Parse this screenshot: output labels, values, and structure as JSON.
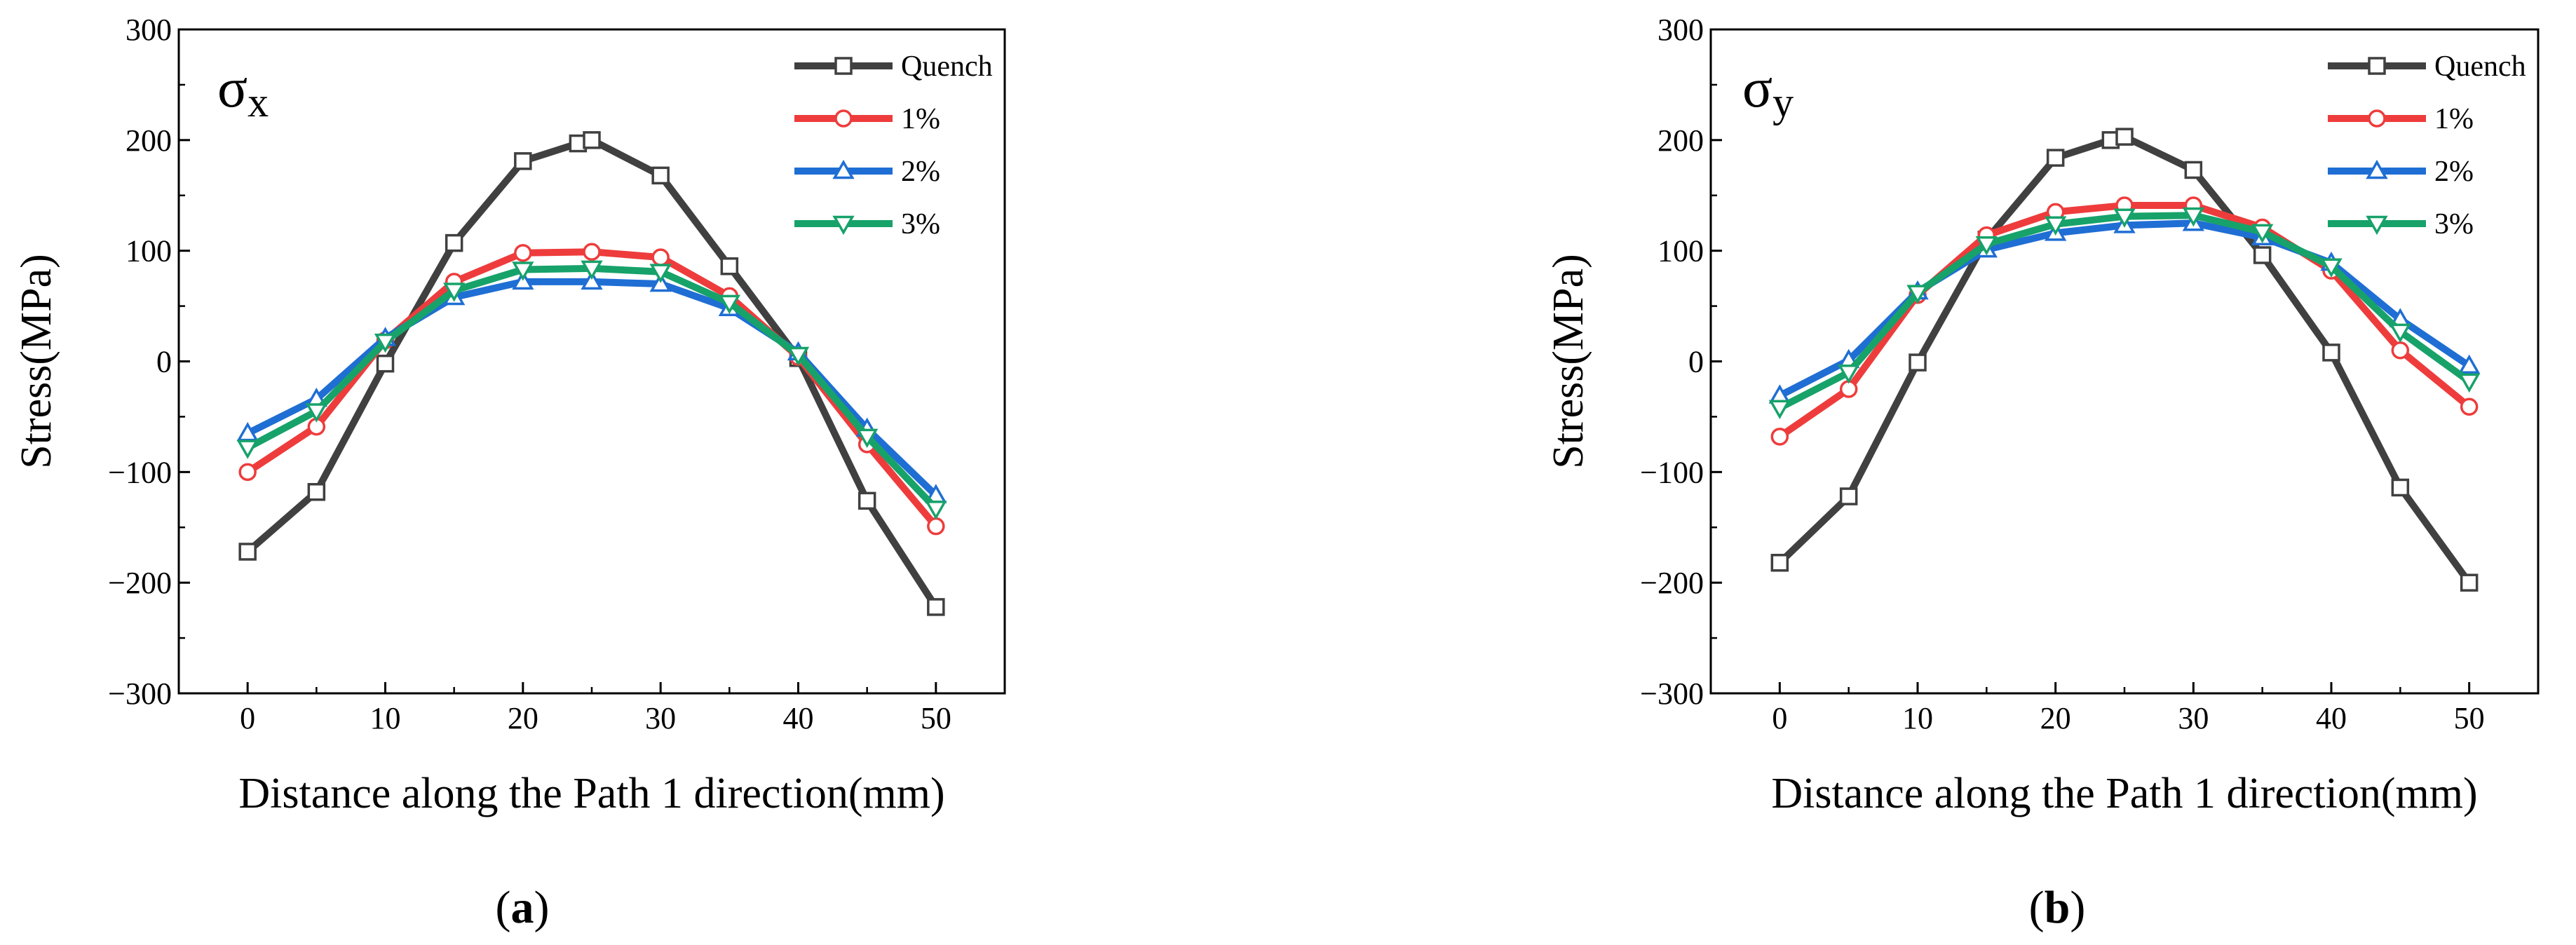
{
  "chart_data": [
    {
      "type": "line",
      "panel_label": "a",
      "annotation": {
        "symbol": "σ",
        "subscript": "x"
      },
      "xlabel": "Distance along the Path 1 direction(mm)",
      "ylabel": "Stress(MPa)",
      "xlim": [
        -5,
        55
      ],
      "ylim": [
        -300,
        300
      ],
      "xticks": [
        0,
        10,
        20,
        30,
        40,
        50
      ],
      "yticks": [
        -300,
        -200,
        -100,
        0,
        100,
        200,
        300
      ],
      "xtick_labels": [
        "0",
        "10",
        "20",
        "30",
        "40",
        "50"
      ],
      "ytick_labels": [
        "−300",
        "−200",
        "−100",
        "0",
        "100",
        "200",
        "300"
      ],
      "legend_position": "top-right",
      "series": [
        {
          "name": "Quench",
          "color": "#404040",
          "marker": "square",
          "x": [
            0,
            5,
            10,
            15,
            20,
            24,
            25,
            30,
            35,
            40,
            45,
            50
          ],
          "y": [
            -172,
            -118,
            -2,
            107,
            181,
            197,
            200,
            168,
            86,
            3,
            -126,
            -222
          ]
        },
        {
          "name": "1%",
          "color": "#ee3c3c",
          "marker": "circle",
          "x": [
            0,
            5,
            10,
            15,
            20,
            25,
            30,
            35,
            40,
            45,
            50
          ],
          "y": [
            -100,
            -59,
            19,
            72,
            98,
            99,
            94,
            59,
            4,
            -75,
            -149
          ]
        },
        {
          "name": "2%",
          "color": "#1f6ed4",
          "marker": "triangle-up",
          "x": [
            0,
            5,
            10,
            15,
            20,
            25,
            30,
            35,
            40,
            45,
            50
          ],
          "y": [
            -65,
            -34,
            21,
            58,
            72,
            72,
            70,
            48,
            8,
            -61,
            -121
          ]
        },
        {
          "name": "3%",
          "color": "#17a26a",
          "marker": "triangle-down",
          "x": [
            0,
            5,
            10,
            15,
            20,
            25,
            30,
            35,
            40,
            45,
            50
          ],
          "y": [
            -78,
            -45,
            18,
            64,
            83,
            84,
            81,
            53,
            6,
            -68,
            -133
          ]
        }
      ]
    },
    {
      "type": "line",
      "panel_label": "b",
      "annotation": {
        "symbol": "σ",
        "subscript": "y"
      },
      "xlabel": "Distance along the Path 1 direction(mm)",
      "ylabel": "Stress(MPa)",
      "xlim": [
        -5,
        55
      ],
      "ylim": [
        -300,
        300
      ],
      "xticks": [
        0,
        10,
        20,
        30,
        40,
        50
      ],
      "yticks": [
        -300,
        -200,
        -100,
        0,
        100,
        200,
        300
      ],
      "xtick_labels": [
        "0",
        "10",
        "20",
        "30",
        "40",
        "50"
      ],
      "ytick_labels": [
        "−300",
        "−200",
        "−100",
        "0",
        "100",
        "200",
        "300"
      ],
      "legend_position": "top-right",
      "series": [
        {
          "name": "Quench",
          "color": "#404040",
          "marker": "square",
          "x": [
            0,
            5,
            10,
            15,
            20,
            24,
            25,
            30,
            35,
            40,
            45,
            50
          ],
          "y": [
            -182,
            -122,
            -1,
            110,
            184,
            200,
            203,
            173,
            96,
            8,
            -114,
            -200
          ]
        },
        {
          "name": "1%",
          "color": "#ee3c3c",
          "marker": "circle",
          "x": [
            0,
            5,
            10,
            15,
            20,
            25,
            30,
            35,
            40,
            45,
            50
          ],
          "y": [
            -68,
            -25,
            60,
            114,
            135,
            141,
            141,
            121,
            82,
            10,
            -41
          ]
        },
        {
          "name": "2%",
          "color": "#1f6ed4",
          "marker": "triangle-up",
          "x": [
            0,
            5,
            10,
            15,
            20,
            25,
            30,
            35,
            40,
            45,
            50
          ],
          "y": [
            -31,
            1,
            63,
            101,
            116,
            123,
            125,
            112,
            89,
            38,
            -4
          ]
        },
        {
          "name": "3%",
          "color": "#17a26a",
          "marker": "triangle-down",
          "x": [
            0,
            5,
            10,
            15,
            20,
            25,
            30,
            35,
            40,
            45,
            50
          ],
          "y": [
            -42,
            -10,
            62,
            106,
            124,
            131,
            132,
            117,
            86,
            27,
            -18
          ]
        }
      ]
    }
  ]
}
